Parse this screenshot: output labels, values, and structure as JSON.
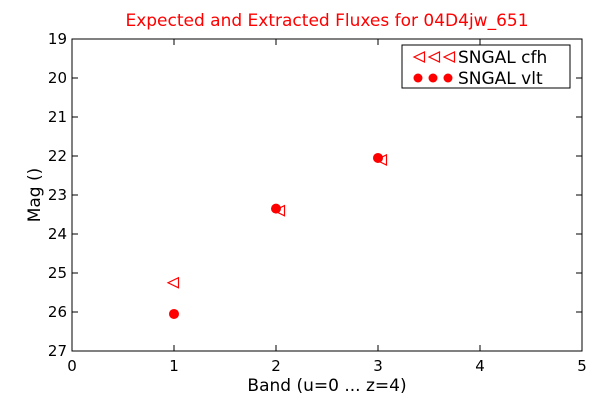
{
  "chart_data": {
    "type": "scatter",
    "title": "Expected and Extracted Fluxes for 04D4jw_651",
    "title_color": "#ff0000",
    "xlabel": "Band (u=0 ... z=4)",
    "ylabel": "Mag ()",
    "xlim": [
      0,
      5
    ],
    "ylim": [
      27,
      19
    ],
    "y_inverted": true,
    "x_ticks": [
      0,
      1,
      2,
      3,
      4,
      5
    ],
    "x_tick_labels": [
      "0",
      "1",
      "2",
      "3",
      "4",
      "5"
    ],
    "y_ticks": [
      19,
      20,
      21,
      22,
      23,
      24,
      25,
      26,
      27
    ],
    "y_tick_labels": [
      "19",
      "20",
      "21",
      "22",
      "23",
      "24",
      "25",
      "26",
      "27"
    ],
    "grid": false,
    "legend_position": "top-right",
    "series": [
      {
        "name": "SNGAL cfh",
        "marker": "triangle-left-open",
        "color": "#ff0000",
        "x": [
          1,
          2,
          3
        ],
        "y": [
          25.25,
          23.35,
          22.05
        ]
      },
      {
        "name": "SNGAL vlt",
        "marker": "circle-filled",
        "color": "#ff0000",
        "x": [
          1,
          2,
          3
        ],
        "y": [
          26.05,
          23.35,
          22.05
        ]
      }
    ]
  }
}
